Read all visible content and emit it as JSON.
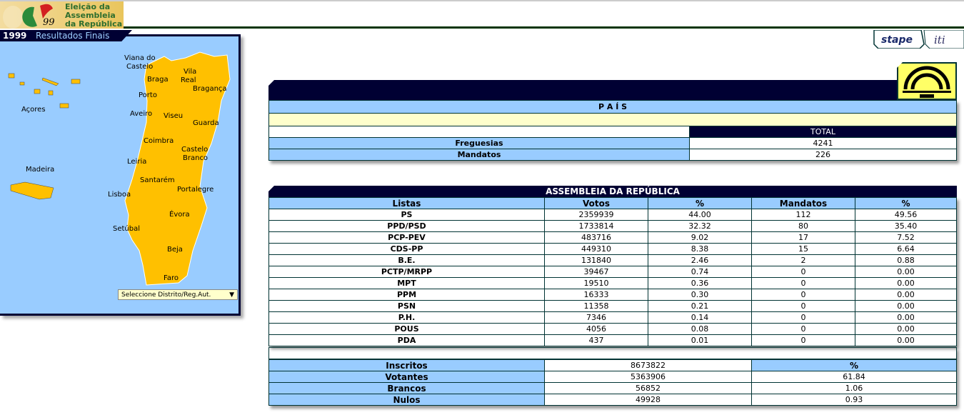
{
  "header": {
    "logo_text": [
      "Eleição da",
      "Assembleia",
      "da República"
    ],
    "logo_year": "99",
    "year": "1999",
    "subtitle": "Resultados Finais",
    "partner1": "stape",
    "partner2": "iti"
  },
  "map": {
    "labels": [
      "Viana do",
      "Castelo",
      "Braga",
      "Vila",
      "Real",
      "Bragança",
      "Porto",
      "Aveiro",
      "Viseu",
      "Guarda",
      "Coimbra",
      "Castelo",
      "Branco",
      "Leiria",
      "Santarém",
      "Portalegre",
      "Lisboa",
      "Setúbal",
      "Évora",
      "Beja",
      "Faro",
      "Açores",
      "Madeira"
    ],
    "select_label": "Seleccione Distrito/Reg.Aut.",
    "region_color": "#ffc000"
  },
  "pais": {
    "title": "P A Í S",
    "total_label": "TOTAL",
    "rows": [
      {
        "label": "Freguesias",
        "value": "4241"
      },
      {
        "label": "Mandatos",
        "value": "226"
      }
    ]
  },
  "ar": {
    "title": "ASSEMBLEIA DA REPÚBLICA",
    "columns": [
      "Listas",
      "Votos",
      "%",
      "Mandatos",
      "%"
    ],
    "rows": [
      [
        "PS",
        "2359939",
        "44.00",
        "112",
        "49.56"
      ],
      [
        "PPD/PSD",
        "1733814",
        "32.32",
        "80",
        "35.40"
      ],
      [
        "PCP-PEV",
        "483716",
        "9.02",
        "17",
        "7.52"
      ],
      [
        "CDS-PP",
        "449310",
        "8.38",
        "15",
        "6.64"
      ],
      [
        "B.E.",
        "131840",
        "2.46",
        "2",
        "0.88"
      ],
      [
        "PCTP/MRPP",
        "39467",
        "0.74",
        "0",
        "0.00"
      ],
      [
        "MPT",
        "19510",
        "0.36",
        "0",
        "0.00"
      ],
      [
        "PPM",
        "16333",
        "0.30",
        "0",
        "0.00"
      ],
      [
        "PSN",
        "11358",
        "0.21",
        "0",
        "0.00"
      ],
      [
        "P.H.",
        "7346",
        "0.14",
        "0",
        "0.00"
      ],
      [
        "POUS",
        "4056",
        "0.08",
        "0",
        "0.00"
      ],
      [
        "PDA",
        "437",
        "0.01",
        "0",
        "0.00"
      ]
    ],
    "summary_pct_header": "%",
    "summary": [
      {
        "label": "Inscritos",
        "value": "8673822",
        "pct": ""
      },
      {
        "label": "Votantes",
        "value": "5363906",
        "pct": "61.84"
      },
      {
        "label": "Brancos",
        "value": "56852",
        "pct": "1.06"
      },
      {
        "label": "Nulos",
        "value": "49928",
        "pct": "0.93"
      }
    ]
  }
}
